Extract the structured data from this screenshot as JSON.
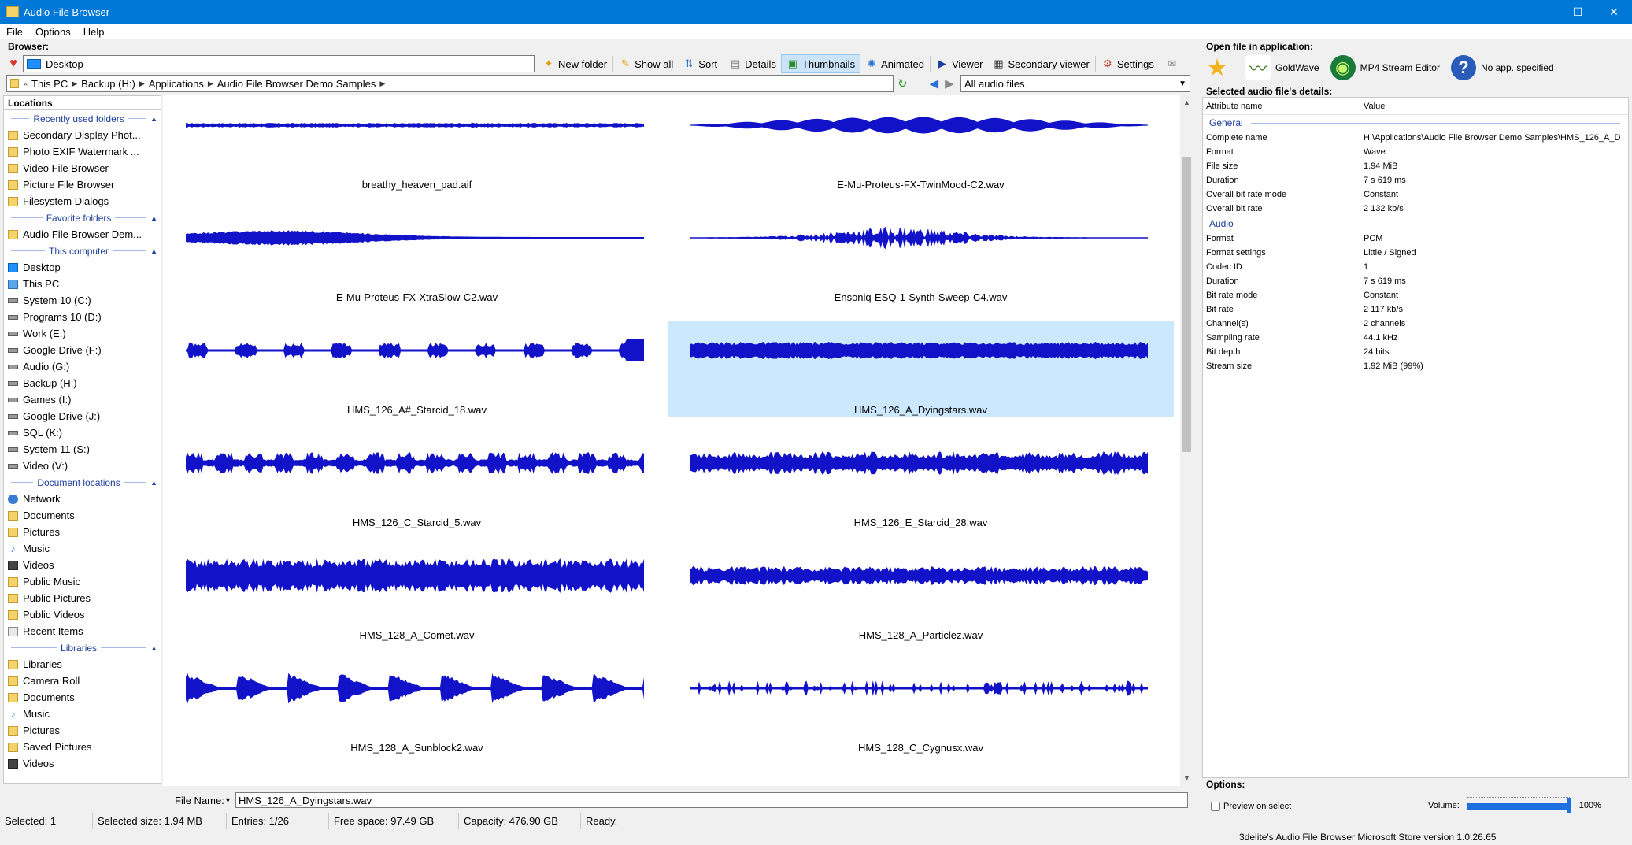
{
  "window": {
    "title": "Audio File Browser",
    "minimize": "—",
    "maximize": "☐",
    "close": "✕"
  },
  "menu": [
    "File",
    "Options",
    "Help"
  ],
  "browser_label": "Browser:",
  "location": "Desktop",
  "toolbar": {
    "new_folder": "New folder",
    "show_all": "Show all",
    "sort": "Sort",
    "details": "Details",
    "thumbnails": "Thumbnails",
    "animated": "Animated",
    "viewer": "Viewer",
    "secondary_viewer": "Secondary viewer",
    "settings": "Settings"
  },
  "breadcrumb": [
    "This PC",
    "Backup (H:)",
    "Applications",
    "Audio File Browser Demo Samples"
  ],
  "filter": "All audio files",
  "locations": {
    "header": "Locations",
    "groups": [
      {
        "title": "Recently used folders",
        "items": [
          {
            "label": "Secondary Display Phot...",
            "icon": "folder"
          },
          {
            "label": "Photo EXIF Watermark ...",
            "icon": "folder"
          },
          {
            "label": "Video File Browser",
            "icon": "folder"
          },
          {
            "label": "Picture File Browser",
            "icon": "folder"
          },
          {
            "label": "Filesystem Dialogs",
            "icon": "folder"
          }
        ]
      },
      {
        "title": "Favorite folders",
        "items": [
          {
            "label": "Audio File Browser Dem...",
            "icon": "folder"
          }
        ]
      },
      {
        "title": "This computer",
        "items": [
          {
            "label": "Desktop",
            "icon": "blue"
          },
          {
            "label": "This PC",
            "icon": "pc"
          },
          {
            "label": "System 10 (C:)",
            "icon": "drive"
          },
          {
            "label": "Programs 10 (D:)",
            "icon": "drive"
          },
          {
            "label": "Work (E:)",
            "icon": "drive"
          },
          {
            "label": "Google Drive (F:)",
            "icon": "drive"
          },
          {
            "label": "Audio (G:)",
            "icon": "drive"
          },
          {
            "label": "Backup (H:)",
            "icon": "drive"
          },
          {
            "label": "Games (I:)",
            "icon": "drive"
          },
          {
            "label": "Google Drive (J:)",
            "icon": "drive"
          },
          {
            "label": "SQL (K:)",
            "icon": "drive"
          },
          {
            "label": "System 11 (S:)",
            "icon": "drive"
          },
          {
            "label": "Video (V:)",
            "icon": "drive"
          }
        ]
      },
      {
        "title": "Document locations",
        "items": [
          {
            "label": "Network",
            "icon": "net"
          },
          {
            "label": "Documents",
            "icon": "folder"
          },
          {
            "label": "Pictures",
            "icon": "folder"
          },
          {
            "label": "Music",
            "icon": "note"
          },
          {
            "label": "Videos",
            "icon": "video"
          },
          {
            "label": "Public Music",
            "icon": "folder"
          },
          {
            "label": "Public Pictures",
            "icon": "folder"
          },
          {
            "label": "Public Videos",
            "icon": "folder"
          },
          {
            "label": "Recent Items",
            "icon": "recent"
          }
        ]
      },
      {
        "title": "Libraries",
        "items": [
          {
            "label": "Libraries",
            "icon": "folder"
          },
          {
            "label": "Camera Roll",
            "icon": "folder"
          },
          {
            "label": "Documents",
            "icon": "folder"
          },
          {
            "label": "Music",
            "icon": "note"
          },
          {
            "label": "Pictures",
            "icon": "folder"
          },
          {
            "label": "Saved Pictures",
            "icon": "folder"
          },
          {
            "label": "Videos",
            "icon": "video"
          }
        ]
      }
    ]
  },
  "thumbnails": [
    {
      "name": "breathy_heaven_pad.aif",
      "wave": "thin"
    },
    {
      "name": "E-Mu-Proteus-FX-TwinMood-C2.wav",
      "wave": "wobble"
    },
    {
      "name": "E-Mu-Proteus-FX-XtraSlow-C2.wav",
      "wave": "swell"
    },
    {
      "name": "Ensoniq-ESQ-1-Synth-Sweep-C4.wav",
      "wave": "spike"
    },
    {
      "name": "HMS_126_A#_Starcid_18.wav",
      "wave": "pulse"
    },
    {
      "name": "HMS_126_A_Dyingstars.wav",
      "wave": "dense",
      "selected": true
    },
    {
      "name": "HMS_126_C_Starcid_5.wav",
      "wave": "blocks"
    },
    {
      "name": "HMS_126_E_Starcid_28.wav",
      "wave": "blocks2"
    },
    {
      "name": "HMS_128_A_Comet.wav",
      "wave": "loud"
    },
    {
      "name": "HMS_128_A_Particlez.wav",
      "wave": "medium"
    },
    {
      "name": "HMS_128_A_Sunblock2.wav",
      "wave": "bursts"
    },
    {
      "name": "HMS_128_C_Cygnusx.wav",
      "wave": "sparse"
    }
  ],
  "file_name_label": "File Name:",
  "file_name_value": "HMS_126_A_Dyingstars.wav",
  "open_in_app": {
    "label": "Open file in application:",
    "apps": [
      {
        "name": "",
        "icon": "star-icon"
      },
      {
        "name": "GoldWave",
        "icon": "goldwave-icon"
      },
      {
        "name": "MP4 Stream Editor",
        "icon": "mp4-stream-editor-icon"
      },
      {
        "name": "No app. specified",
        "icon": "help-icon"
      }
    ]
  },
  "details": {
    "label": "Selected audio file's details:",
    "col_name": "Attribute name",
    "col_value": "Value",
    "groups": [
      {
        "title": "General",
        "rows": [
          {
            "name": "Complete name",
            "value": "H:\\Applications\\Audio File Browser Demo Samples\\HMS_126_A_D..."
          },
          {
            "name": "Format",
            "value": "Wave"
          },
          {
            "name": "File size",
            "value": "1.94 MiB"
          },
          {
            "name": "Duration",
            "value": "7 s 619 ms"
          },
          {
            "name": "Overall bit rate mode",
            "value": "Constant"
          },
          {
            "name": "Overall bit rate",
            "value": "2 132 kb/s"
          }
        ]
      },
      {
        "title": "Audio",
        "rows": [
          {
            "name": "Format",
            "value": "PCM"
          },
          {
            "name": "Format settings",
            "value": "Little / Signed"
          },
          {
            "name": "Codec ID",
            "value": "1"
          },
          {
            "name": "Duration",
            "value": "7 s 619 ms"
          },
          {
            "name": "Bit rate mode",
            "value": "Constant"
          },
          {
            "name": "Bit rate",
            "value": "2 117 kb/s"
          },
          {
            "name": "Channel(s)",
            "value": "2 channels"
          },
          {
            "name": "Sampling rate",
            "value": "44.1 kHz"
          },
          {
            "name": "Bit depth",
            "value": "24 bits"
          },
          {
            "name": "Stream size",
            "value": "1.92 MiB (99%)"
          }
        ]
      }
    ]
  },
  "options": {
    "label": "Options:",
    "preview_on_select": "Preview on select",
    "volume_label": "Volume:",
    "volume_value": "100%",
    "volume_level": 1.0
  },
  "status": {
    "selected": "Selected: 1",
    "selected_size": "Selected size: 1.94 MB",
    "entries": "Entries: 1/26",
    "free_space": "Free space: 97.49 GB",
    "capacity": "Capacity: 476.90 GB",
    "state": "Ready."
  },
  "version": "3delite's Audio File Browser Microsoft Store version 1.0.26.65",
  "colors": {
    "waveform": "#1212c8",
    "accent": "#0078d7",
    "selection": "#cce8ff"
  }
}
